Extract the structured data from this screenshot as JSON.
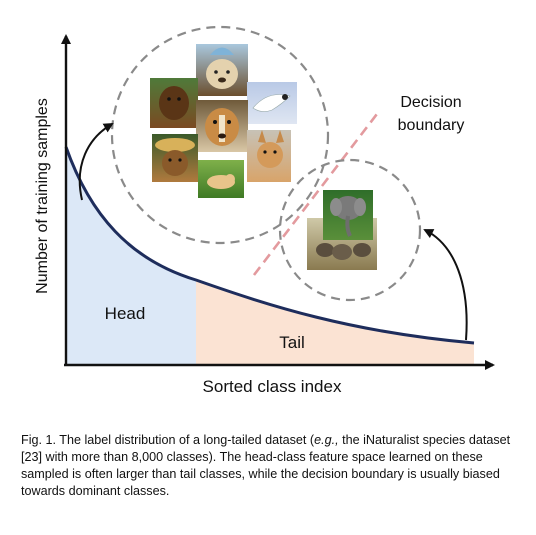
{
  "diagram": {
    "y_axis_label": "Number of training samples",
    "x_axis_label": "Sorted class index",
    "head_label": "Head",
    "tail_label": "Tail",
    "boundary_label_line1": "Decision",
    "boundary_label_line2": "boundary",
    "head_images": [
      "dog with hat",
      "fluffy dog",
      "white bulldog",
      "golden retriever",
      "leaping white dog",
      "dog with straw hat",
      "puppy on grass",
      "corgi"
    ],
    "tail_images": [
      "elephant",
      "elephant herd"
    ],
    "colors": {
      "head_fill": "#dce8f7",
      "tail_fill": "#fbe3d3",
      "curve": "#1e2d5c",
      "boundary": "#e39a9e",
      "circle": "#8a8a8a"
    }
  },
  "caption": {
    "fig_label": "Fig. 1.",
    "text_a": " The label distribution of a long-tailed dataset (",
    "text_eg": "e.g.,",
    "text_b": " the iNaturalist species dataset [23] with more than 8,000 classes). The head-class feature space learned on these sampled is often larger than tail classes, while the decision boundary is usually biased towards dominant classes."
  }
}
